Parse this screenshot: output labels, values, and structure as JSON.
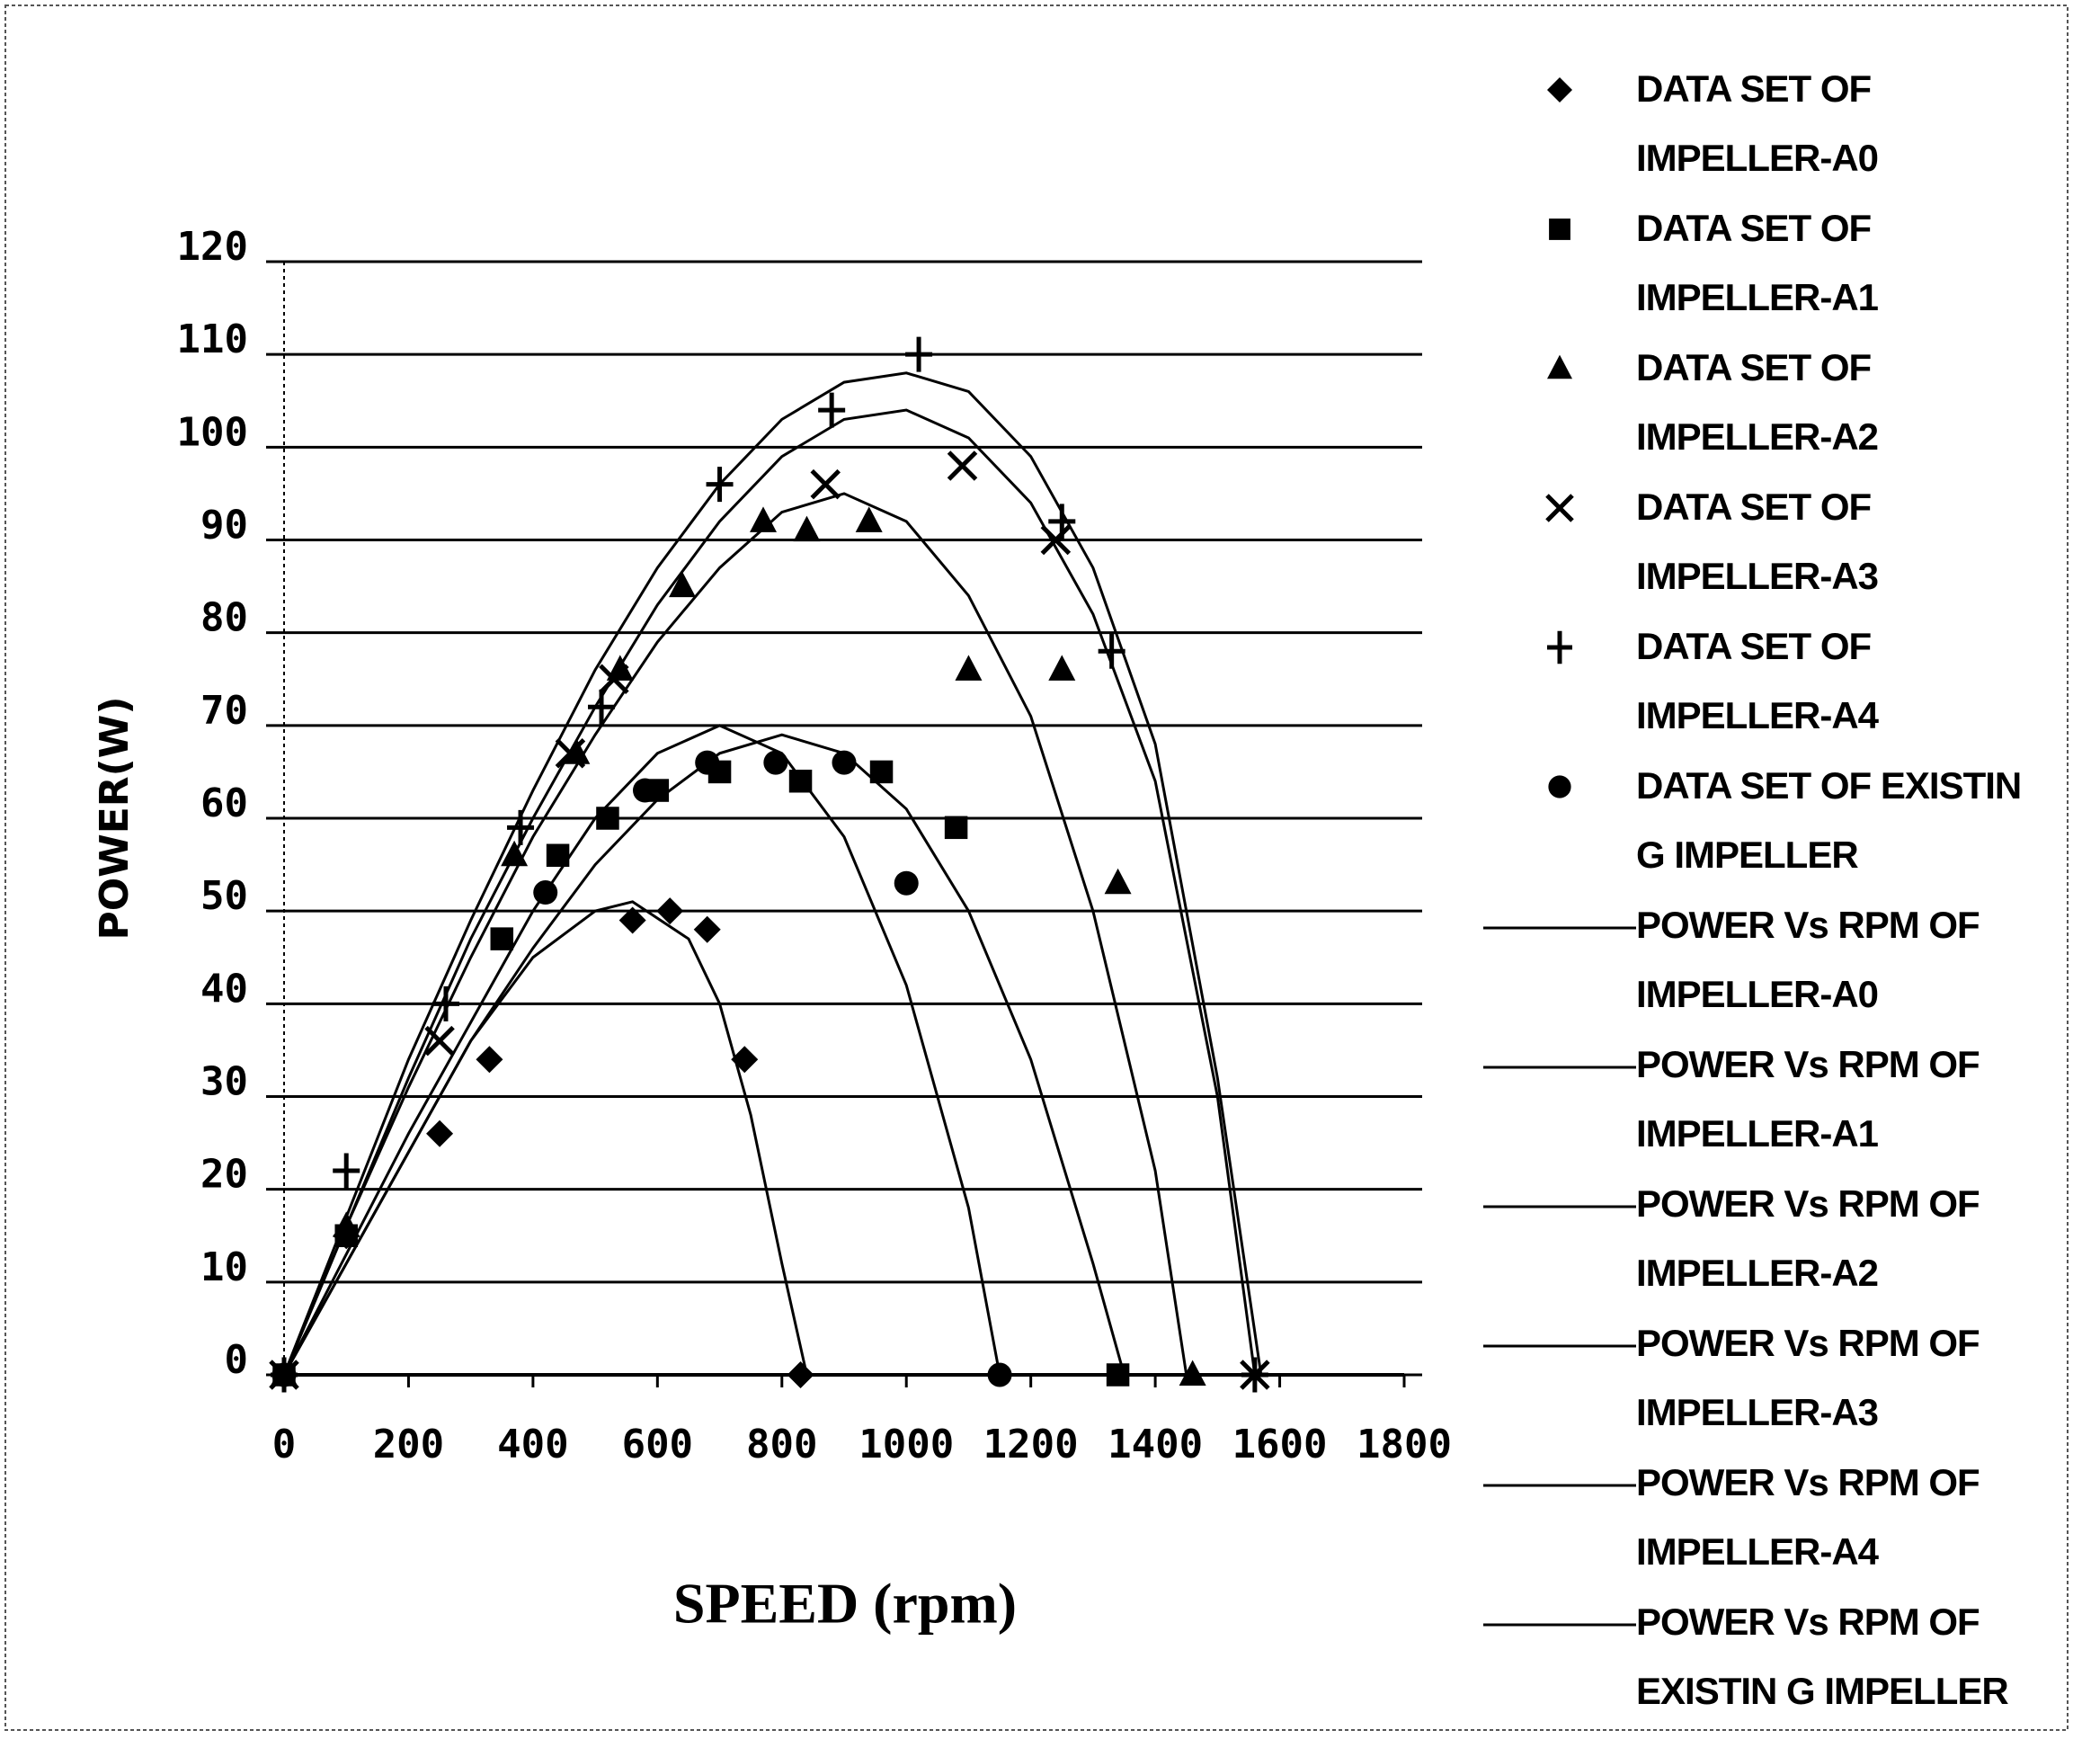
{
  "chart_data": {
    "type": "scatter",
    "xlabel": "SPEED (rpm)",
    "ylabel": "POWER(W)",
    "xlim": [
      0,
      1800
    ],
    "xticks": [
      0,
      200,
      400,
      600,
      800,
      1000,
      1200,
      1400,
      1600,
      1800
    ],
    "ylim": [
      0,
      120
    ],
    "yticks": [
      0,
      10,
      20,
      30,
      40,
      50,
      60,
      70,
      80,
      90,
      100,
      110,
      120
    ],
    "grid": true,
    "legend": "right",
    "series": [
      {
        "name": "DATA SET OF IMPELLER-A0",
        "mode": "markers",
        "marker": "diamond",
        "color": "#000000",
        "x": [
          0,
          100,
          250,
          330,
          560,
          620,
          680,
          740,
          830
        ],
        "values": [
          0,
          15,
          26,
          34,
          49,
          50,
          48,
          34,
          0
        ]
      },
      {
        "name": "DATA SET OF IMPELLER-A1",
        "mode": "markers",
        "marker": "square",
        "color": "#000000",
        "x": [
          0,
          100,
          350,
          440,
          520,
          600,
          700,
          830,
          960,
          1080,
          1340
        ],
        "values": [
          0,
          15,
          47,
          56,
          60,
          63,
          65,
          64,
          65,
          59,
          0
        ]
      },
      {
        "name": "DATA SET OF IMPELLER-A2",
        "mode": "markers",
        "marker": "triangle",
        "color": "#000000",
        "x": [
          0,
          100,
          370,
          470,
          540,
          640,
          770,
          840,
          940,
          1100,
          1250,
          1340,
          1460
        ],
        "values": [
          0,
          16,
          56,
          67,
          76,
          85,
          92,
          91,
          92,
          76,
          76,
          53,
          0
        ]
      },
      {
        "name": "DATA SET OF IMPELLER-A3",
        "mode": "markers",
        "marker": "x",
        "color": "#000000",
        "x": [
          0,
          250,
          460,
          530,
          870,
          1090,
          1240,
          1560
        ],
        "values": [
          0,
          36,
          67,
          75,
          96,
          98,
          90,
          0
        ]
      },
      {
        "name": "DATA SET OF IMPELLER-A4",
        "mode": "markers",
        "marker": "plus",
        "color": "#000000",
        "x": [
          0,
          100,
          260,
          380,
          510,
          700,
          880,
          1020,
          1250,
          1330,
          1560
        ],
        "values": [
          0,
          22,
          40,
          59,
          72,
          96,
          104,
          110,
          92,
          78,
          0
        ]
      },
      {
        "name": "DATA SET OF EXISTIN G IMPELLER",
        "mode": "markers",
        "marker": "circle",
        "color": "#000000",
        "x": [
          0,
          420,
          580,
          680,
          790,
          900,
          1000,
          1150
        ],
        "values": [
          0,
          52,
          63,
          66,
          66,
          66,
          53,
          0
        ]
      },
      {
        "name": "POWER Vs RPM OF IMPELLER-A0",
        "mode": "line",
        "color": "#000000",
        "x": [
          0,
          100,
          200,
          300,
          400,
          500,
          560,
          650,
          700,
          750,
          800,
          840
        ],
        "values": [
          0,
          12,
          24,
          36,
          45,
          50,
          51,
          47,
          40,
          28,
          12,
          0
        ]
      },
      {
        "name": "POWER Vs RPM OF IMPELLER-A1",
        "mode": "line",
        "color": "#000000",
        "x": [
          0,
          100,
          200,
          300,
          400,
          500,
          600,
          700,
          800,
          900,
          1000,
          1100,
          1200,
          1300,
          1350
        ],
        "values": [
          0,
          12,
          24,
          36,
          46,
          55,
          62,
          67,
          69,
          67,
          61,
          50,
          34,
          12,
          0
        ]
      },
      {
        "name": "POWER Vs RPM OF IMPELLER-A2",
        "mode": "line",
        "color": "#000000",
        "x": [
          0,
          100,
          200,
          300,
          400,
          500,
          600,
          700,
          800,
          900,
          1000,
          1100,
          1200,
          1300,
          1400,
          1450
        ],
        "values": [
          0,
          16,
          31,
          45,
          58,
          69,
          79,
          87,
          93,
          95,
          92,
          84,
          71,
          50,
          22,
          0
        ]
      },
      {
        "name": "POWER Vs RPM OF IMPELLER-A3",
        "mode": "line",
        "color": "#000000",
        "x": [
          0,
          100,
          200,
          300,
          400,
          500,
          600,
          700,
          800,
          900,
          1000,
          1100,
          1200,
          1300,
          1400,
          1500,
          1560
        ],
        "values": [
          0,
          16,
          32,
          47,
          60,
          72,
          83,
          92,
          99,
          103,
          104,
          101,
          94,
          82,
          64,
          30,
          0
        ]
      },
      {
        "name": "POWER Vs RPM OF IMPELLER-A4",
        "mode": "line",
        "color": "#000000",
        "x": [
          0,
          100,
          200,
          300,
          400,
          500,
          600,
          700,
          800,
          900,
          1000,
          1100,
          1200,
          1300,
          1400,
          1500,
          1570
        ],
        "values": [
          0,
          17,
          34,
          49,
          63,
          76,
          87,
          96,
          103,
          107,
          108,
          106,
          99,
          87,
          68,
          32,
          0
        ]
      },
      {
        "name": "POWER Vs RPM OF EXISTIN G IMPELLER",
        "mode": "line",
        "color": "#000000",
        "x": [
          0,
          100,
          200,
          300,
          400,
          500,
          600,
          700,
          800,
          900,
          1000,
          1100,
          1150
        ],
        "values": [
          0,
          13,
          26,
          38,
          50,
          60,
          67,
          70,
          67,
          58,
          42,
          18,
          0
        ]
      }
    ]
  }
}
